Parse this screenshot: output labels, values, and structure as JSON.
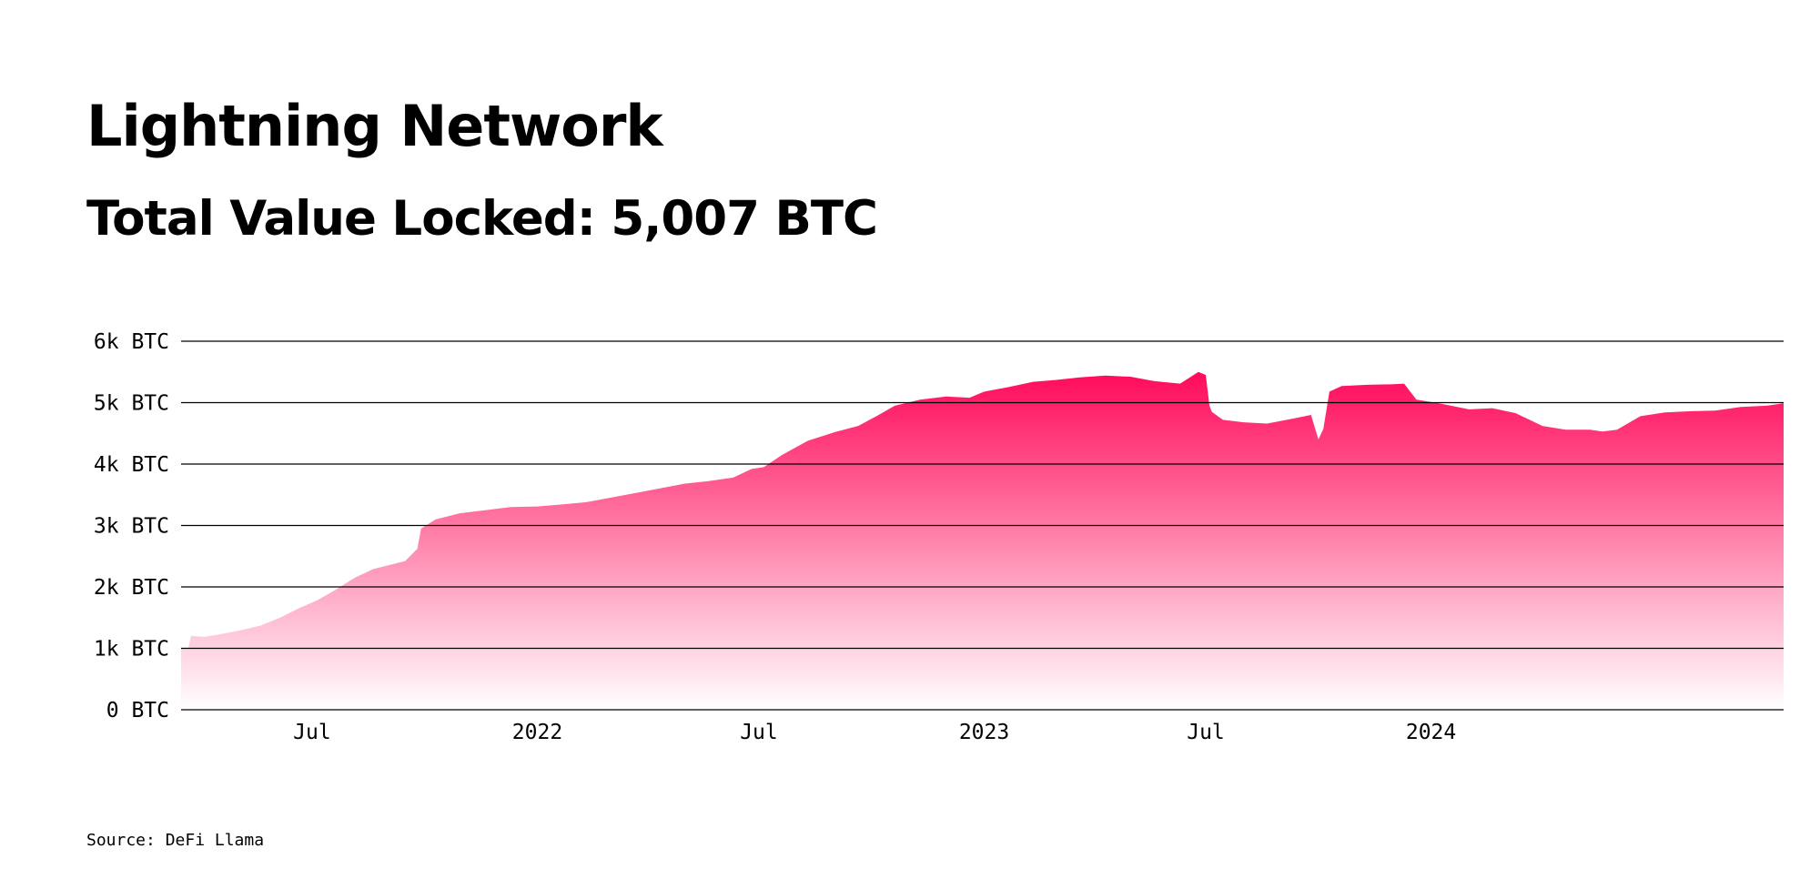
{
  "header": {
    "title": "Lightning Network",
    "subtitle": "Total Value Locked: 5,007 BTC"
  },
  "footer": {
    "source": "Source: DeFi Llama"
  },
  "colors": {
    "area_top": "#ff0a5a",
    "area_bottom": "#ffffff",
    "grid": "#000000",
    "text": "#000000"
  },
  "chart_data": {
    "type": "area",
    "title": "",
    "xlabel": "",
    "ylabel": "",
    "xlim": [
      "2021-03-16",
      "2024-10-15"
    ],
    "ylim": [
      0,
      6000
    ],
    "y_ticks": [
      {
        "value": 0,
        "label": "0 BTC"
      },
      {
        "value": 1000,
        "label": "1k BTC"
      },
      {
        "value": 2000,
        "label": "2k BTC"
      },
      {
        "value": 3000,
        "label": "3k BTC"
      },
      {
        "value": 4000,
        "label": "4k BTC"
      },
      {
        "value": 5000,
        "label": "5k BTC"
      },
      {
        "value": 6000,
        "label": "6k BTC"
      }
    ],
    "x_ticks": [
      {
        "date": "2021-07-01",
        "label": "Jul"
      },
      {
        "date": "2022-01-01",
        "label": "2022"
      },
      {
        "date": "2022-07-01",
        "label": "Jul"
      },
      {
        "date": "2023-01-01",
        "label": "2023"
      },
      {
        "date": "2023-07-01",
        "label": "Jul"
      },
      {
        "date": "2024-01-01",
        "label": "2024"
      }
    ],
    "grid": true,
    "legend": "none",
    "series": [
      {
        "x": [
          "2021-03-16",
          "2021-03-22",
          "2021-03-24",
          "2021-04-05",
          "2021-04-20",
          "2021-05-05",
          "2021-05-20",
          "2021-06-05",
          "2021-06-20",
          "2021-07-05",
          "2021-07-20",
          "2021-08-05",
          "2021-08-20",
          "2021-09-01",
          "2021-09-15",
          "2021-09-25",
          "2021-09-28",
          "2021-10-10",
          "2021-10-30",
          "2021-11-20",
          "2021-12-10",
          "2022-01-01",
          "2022-01-20",
          "2022-02-10",
          "2022-03-01",
          "2022-03-20",
          "2022-04-10",
          "2022-05-01",
          "2022-05-20",
          "2022-06-10",
          "2022-06-25",
          "2022-07-05",
          "2022-07-20",
          "2022-08-10",
          "2022-09-01",
          "2022-09-20",
          "2022-10-05",
          "2022-10-20",
          "2022-11-10",
          "2022-12-01",
          "2022-12-20",
          "2023-01-01",
          "2023-01-20",
          "2023-02-10",
          "2023-03-01",
          "2023-03-20",
          "2023-04-10",
          "2023-05-01",
          "2023-05-20",
          "2023-06-10",
          "2023-06-25",
          "2023-07-01",
          "2023-07-04",
          "2023-07-06",
          "2023-07-15",
          "2023-08-01",
          "2023-08-20",
          "2023-09-10",
          "2023-09-25",
          "2023-10-01",
          "2023-10-05",
          "2023-10-10",
          "2023-10-20",
          "2023-11-10",
          "2023-12-01",
          "2023-12-10",
          "2023-12-20",
          "2024-01-10",
          "2024-02-01",
          "2024-02-20",
          "2024-03-10",
          "2024-04-01",
          "2024-04-20",
          "2024-05-10",
          "2024-05-20",
          "2024-06-01",
          "2024-06-20",
          "2024-07-10",
          "2024-08-01",
          "2024-08-20",
          "2024-09-10",
          "2024-10-01",
          "2024-10-15"
        ],
        "values": [
          990,
          1010,
          1200,
          1190,
          1240,
          1300,
          1370,
          1500,
          1650,
          1780,
          1950,
          2150,
          2290,
          2350,
          2420,
          2620,
          2950,
          3100,
          3200,
          3250,
          3300,
          3310,
          3340,
          3380,
          3450,
          3520,
          3600,
          3680,
          3720,
          3780,
          3920,
          3950,
          4150,
          4380,
          4520,
          4620,
          4780,
          4950,
          5050,
          5100,
          5080,
          5180,
          5250,
          5340,
          5370,
          5410,
          5440,
          5420,
          5350,
          5310,
          5500,
          5450,
          4950,
          4850,
          4720,
          4680,
          4660,
          4740,
          4800,
          4400,
          4570,
          5180,
          5270,
          5290,
          5300,
          5310,
          5050,
          4980,
          4890,
          4910,
          4830,
          4620,
          4560,
          4560,
          4530,
          4560,
          4780,
          4840,
          4860,
          4870,
          4930,
          4950,
          4990
        ]
      }
    ]
  }
}
